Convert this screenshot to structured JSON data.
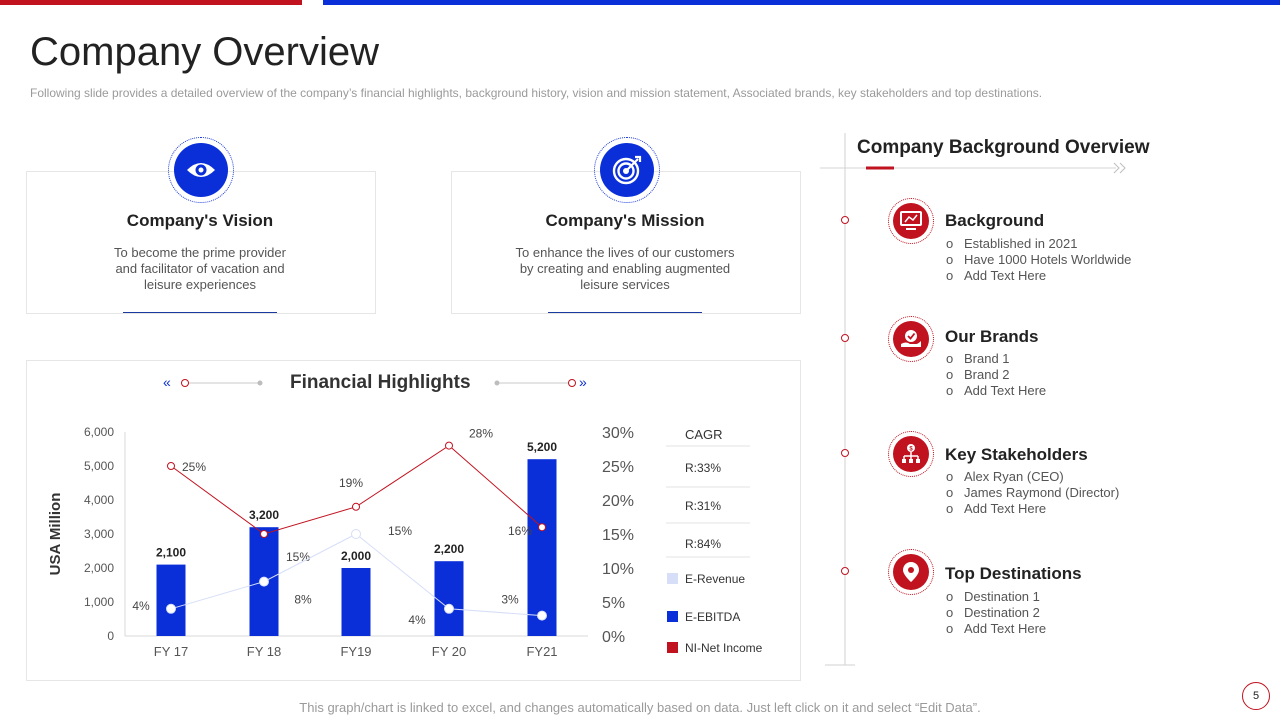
{
  "page": {
    "title": "Company Overview",
    "subtitle": "Following slide provides a detailed overview of the company’s financial highlights, background history, vision and mission statement, Associated brands, key stakeholders and top destinations.",
    "page_number": "5",
    "footer_note": "This graph/chart is linked to excel, and changes automatically based on data. Just left click on it and select “Edit Data”."
  },
  "vision": {
    "title": "Company's Vision",
    "lines": [
      "To become the prime provider",
      "and facilitator of vacation and",
      "leisure experiences"
    ],
    "icon": "eye-icon"
  },
  "mission": {
    "title": "Company's Mission",
    "lines": [
      "To enhance the lives of our customers",
      "by creating and enabling augmented",
      "leisure services"
    ],
    "icon": "target-icon"
  },
  "financial": {
    "title": "Financial Highlights"
  },
  "chart_data": {
    "type": "bar",
    "title": "Financial Highlights",
    "ylabel": "USA Million",
    "categories": [
      "FY 17",
      "FY 18",
      "FY19",
      "FY 20",
      "FY21"
    ],
    "ylim": [
      0,
      6000
    ],
    "y_ticks": [
      "6,000",
      "5,000",
      "4,000",
      "3,000",
      "2,000",
      "1,000",
      "0"
    ],
    "y2lim": [
      0,
      30
    ],
    "y2_ticks": [
      "30%",
      "25%",
      "20%",
      "15%",
      "10%",
      "5%",
      "0%"
    ],
    "series": [
      {
        "name": "E-EBITDA",
        "kind": "bar",
        "color": "#0a2fd8",
        "values": [
          2100,
          3200,
          2000,
          2200,
          5200
        ],
        "labels": [
          "2,100",
          "3,200",
          "2,000",
          "2,200",
          "5,200"
        ]
      },
      {
        "name": "NI-Net Income",
        "kind": "line",
        "color": "#c1121f",
        "values": [
          25,
          15,
          19,
          28,
          16
        ],
        "labels": [
          "25%",
          "15%",
          "19%",
          "28%",
          "16%"
        ]
      },
      {
        "name": "E-Revenue",
        "kind": "line",
        "color": "#d6def8",
        "values": [
          4,
          8,
          15,
          4,
          3
        ],
        "labels": [
          "4%",
          "8%",
          "15%",
          "4%",
          "3%"
        ]
      }
    ],
    "cagr": {
      "header": "CAGR",
      "values": [
        "R:33%",
        "R:31%",
        "R:84%"
      ]
    },
    "legend": [
      "E-Revenue",
      "E-EBITDA",
      "NI-Net Income"
    ]
  },
  "background_overview": {
    "title": "Company Background Overview",
    "sections": [
      {
        "title": "Background",
        "icon": "monitor-icon",
        "items": [
          "Established in 2021",
          "Have  1000 Hotels Worldwide",
          "Add Text Here"
        ]
      },
      {
        "title": "Our Brands",
        "icon": "hand-badge-icon",
        "items": [
          "Brand 1",
          "Brand 2",
          "Add Text Here"
        ]
      },
      {
        "title": "Key Stakeholders",
        "icon": "org-chart-icon",
        "items": [
          "Alex Ryan (CEO)",
          "James Raymond (Director)",
          "Add Text Here"
        ]
      },
      {
        "title": "Top Destinations",
        "icon": "location-pin-icon",
        "items": [
          "Destination 1",
          "Destination 2",
          "Add Text Here"
        ]
      }
    ],
    "bullet": "o"
  },
  "colors": {
    "red": "#c1121f",
    "blue": "#0a2fd8",
    "light_blue": "#d6def8"
  }
}
